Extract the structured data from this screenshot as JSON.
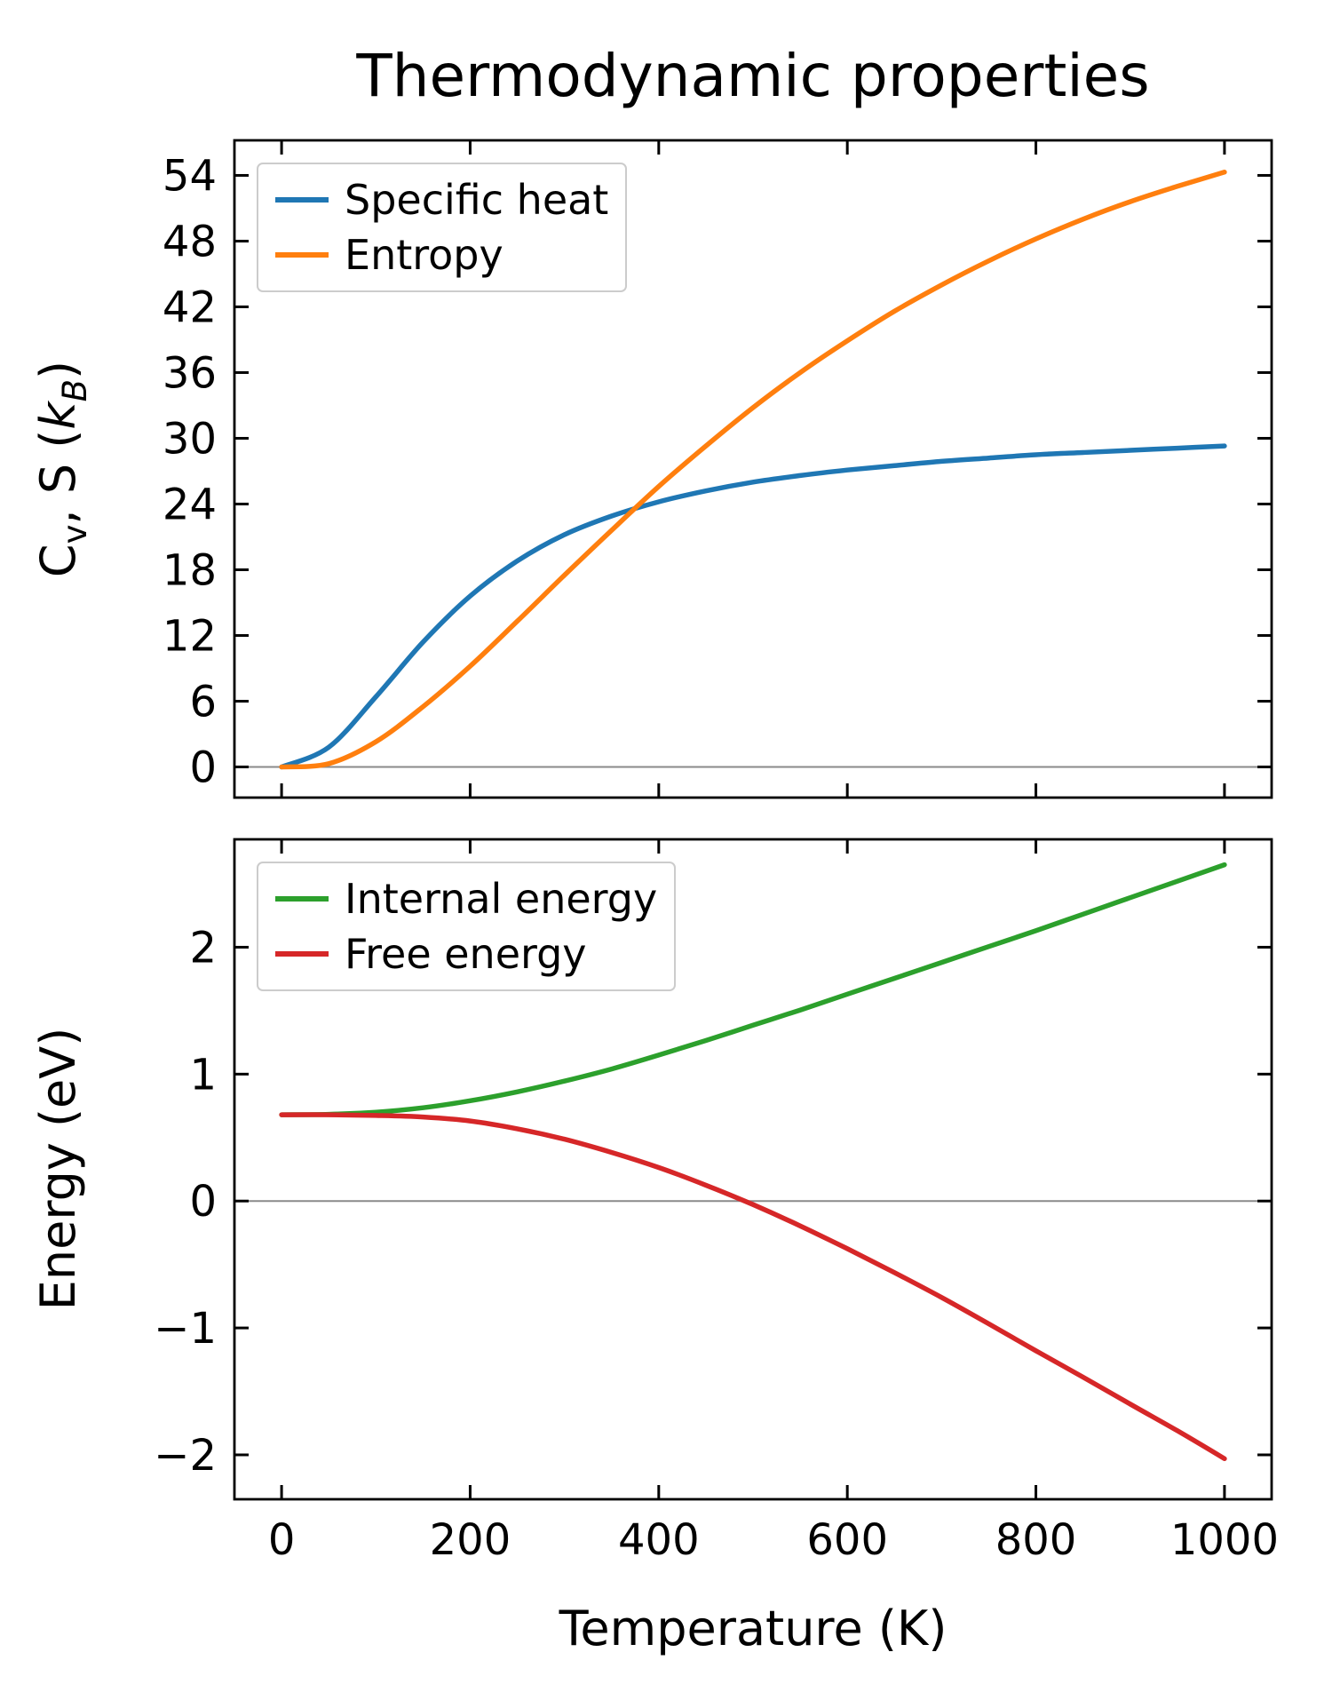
{
  "figure_title": "Thermodynamic properties",
  "colors": {
    "specific_heat": "#1f77b4",
    "entropy": "#ff7f0e",
    "internal_energy": "#2ca02c",
    "free_energy": "#d62728",
    "zero_line": "#8a8a8a",
    "legend_border": "#cccccc",
    "spine": "#000000"
  },
  "chart_data": [
    {
      "type": "line",
      "title": "Thermodynamic properties",
      "ylabel_plain": "Cv, S (kB)",
      "ylabel_parts": [
        {
          "text": "C",
          "style": "normal"
        },
        {
          "text": "v",
          "style": "sub"
        },
        {
          "text": ", S (",
          "style": "normal"
        },
        {
          "text": "k",
          "style": "italic"
        },
        {
          "text": "B",
          "style": "sub-italic"
        },
        {
          "text": ")",
          "style": "normal"
        }
      ],
      "x": [
        0,
        50,
        100,
        150,
        200,
        250,
        300,
        350,
        400,
        450,
        500,
        550,
        600,
        650,
        700,
        750,
        800,
        850,
        900,
        950,
        1000
      ],
      "series": [
        {
          "name": "Specific heat",
          "color": "#1f77b4",
          "values": [
            0.0,
            1.8,
            6.4,
            11.4,
            15.6,
            18.8,
            21.2,
            22.9,
            24.2,
            25.2,
            26.0,
            26.6,
            27.1,
            27.5,
            27.9,
            28.2,
            28.5,
            28.7,
            28.9,
            29.1,
            29.3
          ]
        },
        {
          "name": "Entropy",
          "color": "#ff7f0e",
          "values": [
            0.0,
            0.3,
            2.3,
            5.5,
            9.2,
            13.3,
            17.5,
            21.6,
            25.6,
            29.3,
            32.8,
            36.0,
            38.9,
            41.6,
            44.0,
            46.2,
            48.2,
            50.0,
            51.6,
            53.0,
            54.3
          ]
        }
      ],
      "xlim": [
        -50,
        1050
      ],
      "ylim": [
        -2.8,
        57.2
      ],
      "xticks": [
        0,
        200,
        400,
        600,
        800,
        1000
      ],
      "yticks": [
        0,
        6,
        12,
        18,
        24,
        30,
        36,
        42,
        48,
        54
      ],
      "x_tick_labels_visible": false,
      "legend_position": "upper left",
      "zero_line_y": 0,
      "grid": false
    },
    {
      "type": "line",
      "xlabel": "Temperature (K)",
      "ylabel_plain": "Energy (eV)",
      "x": [
        0,
        50,
        100,
        150,
        200,
        250,
        300,
        350,
        400,
        450,
        500,
        550,
        600,
        650,
        700,
        750,
        800,
        850,
        900,
        950,
        1000
      ],
      "series": [
        {
          "name": "Internal energy",
          "color": "#2ca02c",
          "values": [
            0.68,
            0.683,
            0.7,
            0.735,
            0.79,
            0.86,
            0.945,
            1.04,
            1.15,
            1.265,
            1.385,
            1.505,
            1.63,
            1.755,
            1.88,
            2.005,
            2.13,
            2.26,
            2.39,
            2.52,
            2.65
          ]
        },
        {
          "name": "Free energy",
          "color": "#d62728",
          "values": [
            0.68,
            0.68,
            0.674,
            0.662,
            0.631,
            0.569,
            0.487,
            0.383,
            0.264,
            0.125,
            -0.028,
            -0.196,
            -0.376,
            -0.564,
            -0.76,
            -0.968,
            -1.18,
            -1.388,
            -1.6,
            -1.81,
            -2.03
          ]
        }
      ],
      "xlim": [
        -50,
        1050
      ],
      "ylim": [
        -2.35,
        2.85
      ],
      "xticks": [
        0,
        200,
        400,
        600,
        800,
        1000
      ],
      "yticks": [
        -2,
        -1,
        0,
        1,
        2
      ],
      "x_tick_labels_visible": true,
      "legend_position": "upper left",
      "zero_line_y": 0,
      "grid": false
    }
  ]
}
